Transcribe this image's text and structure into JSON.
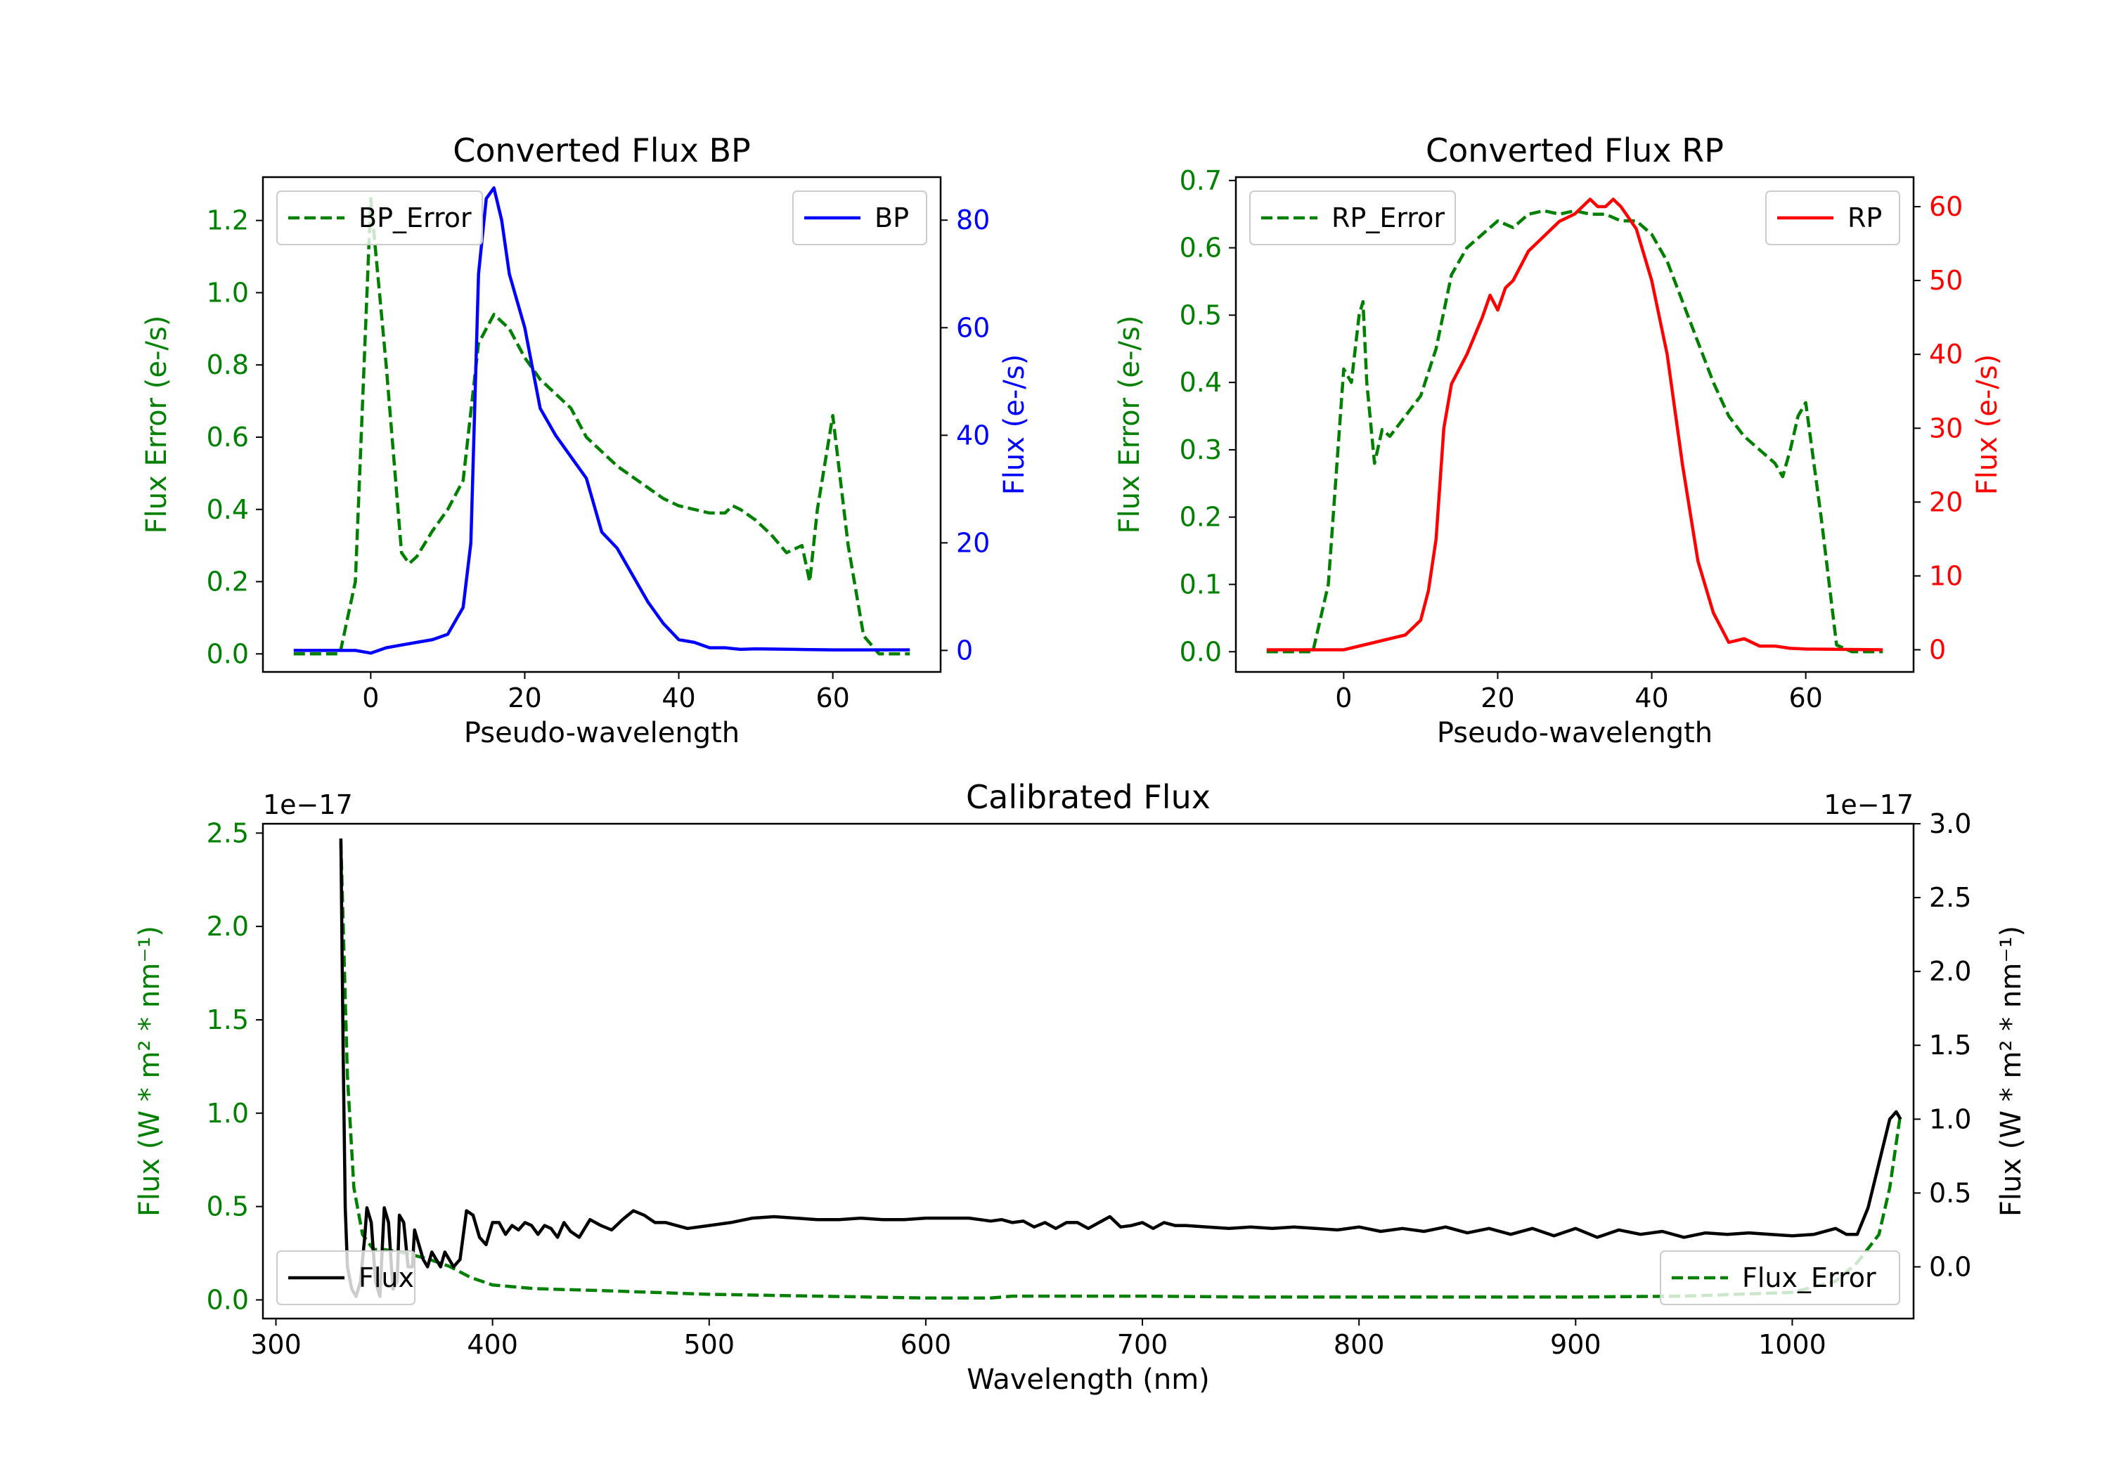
{
  "chart_data": [
    {
      "type": "line",
      "title": "Converted Flux BP",
      "xlabel": "Pseudo-wavelength",
      "xlim": [
        -14,
        74
      ],
      "xticks": [
        0,
        20,
        40,
        60
      ],
      "y_left": {
        "label": "Flux Error (e-/s)",
        "lim": [
          -0.05,
          1.32
        ],
        "ticks": [
          0.0,
          0.2,
          0.4,
          0.6,
          0.8,
          1.0,
          1.2
        ],
        "tick_labels": [
          "0.0",
          "0.2",
          "0.4",
          "0.6",
          "0.8",
          "1.0",
          "1.2"
        ],
        "color": "#008000"
      },
      "y_right": {
        "label": "Flux (e-/s)",
        "lim": [
          -4,
          88
        ],
        "ticks": [
          0,
          20,
          40,
          60,
          80
        ],
        "tick_labels": [
          "0",
          "20",
          "40",
          "60",
          "80"
        ],
        "color": "#0000ff"
      },
      "series": [
        {
          "name": "BP_Error",
          "axis": "left",
          "style": "dashed",
          "color": "#008000",
          "x": [
            -10,
            -4,
            -2,
            0,
            2,
            4,
            5,
            6,
            8,
            10,
            12,
            14,
            16,
            18,
            20,
            22,
            24,
            26,
            28,
            30,
            32,
            34,
            36,
            38,
            40,
            42,
            44,
            46,
            47,
            48,
            50,
            52,
            54,
            56,
            57,
            58,
            60,
            62,
            64,
            66,
            70
          ],
          "y": [
            0.0,
            0.0,
            0.2,
            1.26,
            0.8,
            0.28,
            0.25,
            0.27,
            0.34,
            0.4,
            0.48,
            0.86,
            0.94,
            0.9,
            0.82,
            0.76,
            0.72,
            0.68,
            0.6,
            0.56,
            0.52,
            0.49,
            0.46,
            0.43,
            0.41,
            0.4,
            0.39,
            0.39,
            0.41,
            0.4,
            0.37,
            0.33,
            0.28,
            0.3,
            0.2,
            0.4,
            0.66,
            0.3,
            0.05,
            0.0,
            0.0
          ]
        },
        {
          "name": "BP",
          "axis": "right",
          "style": "solid",
          "color": "#0000ff",
          "x": [
            -10,
            -2,
            0,
            2,
            4,
            6,
            8,
            10,
            12,
            13,
            14,
            15,
            16,
            17,
            18,
            20,
            22,
            24,
            26,
            28,
            30,
            32,
            34,
            36,
            38,
            40,
            42,
            44,
            46,
            48,
            50,
            55,
            60,
            70
          ],
          "y": [
            0,
            0,
            -0.5,
            0.5,
            1,
            1.5,
            2,
            3,
            8,
            20,
            70,
            84,
            86,
            80,
            70,
            60,
            45,
            40,
            36,
            32,
            22,
            19,
            14,
            9,
            5,
            2,
            1.5,
            0.5,
            0.5,
            0.2,
            0.3,
            0.2,
            0.1,
            0.1
          ]
        }
      ],
      "legend": [
        {
          "label": "BP_Error",
          "position": "upper-left"
        },
        {
          "label": "BP",
          "position": "upper-right"
        }
      ]
    },
    {
      "type": "line",
      "title": "Converted Flux RP",
      "xlabel": "Pseudo-wavelength",
      "xlim": [
        -14,
        74
      ],
      "xticks": [
        0,
        20,
        40,
        60
      ],
      "y_left": {
        "label": "Flux Error (e-/s)",
        "lim": [
          -0.03,
          0.705
        ],
        "ticks": [
          0.0,
          0.1,
          0.2,
          0.3,
          0.4,
          0.5,
          0.6,
          0.7
        ],
        "tick_labels": [
          "0.0",
          "0.1",
          "0.2",
          "0.3",
          "0.4",
          "0.5",
          "0.6",
          "0.7"
        ],
        "color": "#008000"
      },
      "y_right": {
        "label": "Flux (e-/s)",
        "lim": [
          -3,
          64
        ],
        "ticks": [
          0,
          10,
          20,
          30,
          40,
          50,
          60
        ],
        "tick_labels": [
          "0",
          "10",
          "20",
          "30",
          "40",
          "50",
          "60"
        ],
        "color": "#ff0000"
      },
      "series": [
        {
          "name": "RP_Error",
          "axis": "left",
          "style": "dashed",
          "color": "#008000",
          "x": [
            -10,
            -4,
            -2,
            0,
            1,
            2,
            2.5,
            3,
            4,
            5,
            6,
            8,
            10,
            12,
            14,
            16,
            18,
            20,
            22,
            24,
            26,
            28,
            30,
            32,
            34,
            36,
            38,
            40,
            42,
            44,
            46,
            48,
            50,
            52,
            54,
            56,
            57,
            58,
            59,
            60,
            62,
            64,
            66,
            70
          ],
          "y": [
            0.0,
            0.0,
            0.1,
            0.42,
            0.4,
            0.5,
            0.52,
            0.4,
            0.28,
            0.33,
            0.32,
            0.35,
            0.38,
            0.45,
            0.56,
            0.6,
            0.62,
            0.64,
            0.63,
            0.65,
            0.655,
            0.65,
            0.655,
            0.65,
            0.65,
            0.64,
            0.64,
            0.62,
            0.58,
            0.52,
            0.46,
            0.4,
            0.35,
            0.32,
            0.3,
            0.28,
            0.26,
            0.3,
            0.35,
            0.37,
            0.2,
            0.01,
            0.0,
            0.0
          ]
        },
        {
          "name": "RP",
          "axis": "right",
          "style": "solid",
          "color": "#ff0000",
          "x": [
            -10,
            -4,
            0,
            4,
            6,
            8,
            9,
            10,
            11,
            12,
            13,
            14,
            16,
            18,
            19,
            20,
            21,
            22,
            24,
            26,
            28,
            30,
            31,
            32,
            33,
            34,
            35,
            36,
            38,
            40,
            42,
            44,
            46,
            48,
            50,
            52,
            54,
            56,
            58,
            60,
            70
          ],
          "y": [
            0,
            0,
            0,
            1,
            1.5,
            2,
            3,
            4,
            8,
            15,
            30,
            36,
            40,
            45,
            48,
            46,
            49,
            50,
            54,
            56,
            58,
            59,
            60,
            61,
            60,
            60,
            61,
            60,
            57,
            50,
            40,
            25,
            12,
            5,
            1,
            1.5,
            0.5,
            0.5,
            0.2,
            0.1,
            0
          ]
        }
      ],
      "legend": [
        {
          "label": "RP_Error",
          "position": "upper-left"
        },
        {
          "label": "RP",
          "position": "upper-right"
        }
      ]
    },
    {
      "type": "line",
      "title": "Calibrated Flux",
      "xlabel": "Wavelength (nm)",
      "xlim": [
        294,
        1056
      ],
      "xticks": [
        300,
        400,
        500,
        600,
        700,
        800,
        900,
        1000
      ],
      "y_left": {
        "label": "Flux (W * m² * nm⁻¹)",
        "lim": [
          -0.1,
          2.55
        ],
        "ticks": [
          0.0,
          0.5,
          1.0,
          1.5,
          2.0,
          2.5
        ],
        "tick_labels": [
          "0.0",
          "0.5",
          "1.0",
          "1.5",
          "2.0",
          "2.5"
        ],
        "offset_label": "1e−17",
        "color": "#008000"
      },
      "y_right": {
        "label": "Flux (W * m² * nm⁻¹)",
        "lim": [
          -0.35,
          3.0
        ],
        "ticks": [
          0.0,
          0.5,
          1.0,
          1.5,
          2.0,
          2.5,
          3.0
        ],
        "tick_labels": [
          "0.0",
          "0.5",
          "1.0",
          "1.5",
          "2.0",
          "2.5",
          "3.0"
        ],
        "offset_label": "1e−17",
        "color": "#000000"
      },
      "series": [
        {
          "name": "Flux_Error",
          "axis": "left",
          "style": "dashed",
          "color": "#008000",
          "x": [
            330,
            333,
            336,
            340,
            345,
            350,
            360,
            370,
            380,
            390,
            400,
            420,
            450,
            500,
            550,
            600,
            630,
            640,
            650,
            700,
            750,
            800,
            850,
            900,
            950,
            1000,
            1020,
            1030,
            1040,
            1045,
            1050
          ],
          "y": [
            2.45,
            1.2,
            0.6,
            0.35,
            0.27,
            0.27,
            0.25,
            0.22,
            0.18,
            0.12,
            0.08,
            0.06,
            0.05,
            0.03,
            0.02,
            0.01,
            0.01,
            0.02,
            0.02,
            0.02,
            0.015,
            0.015,
            0.015,
            0.015,
            0.02,
            0.04,
            0.1,
            0.2,
            0.35,
            0.6,
            1.0
          ]
        },
        {
          "name": "Flux",
          "axis": "right",
          "style": "solid",
          "color": "#000000",
          "x": [
            330,
            331,
            332,
            333,
            335,
            337,
            339,
            341,
            342,
            344,
            346,
            348,
            349,
            350,
            352,
            354,
            356,
            357,
            359,
            361,
            363,
            364,
            366,
            368,
            370,
            372,
            374,
            376,
            378,
            380,
            382,
            385,
            388,
            391,
            394,
            397,
            400,
            403,
            406,
            409,
            412,
            415,
            418,
            421,
            424,
            427,
            430,
            433,
            436,
            440,
            445,
            450,
            455,
            460,
            465,
            470,
            475,
            480,
            490,
            500,
            510,
            520,
            530,
            540,
            550,
            560,
            570,
            580,
            590,
            600,
            610,
            620,
            630,
            635,
            640,
            645,
            650,
            655,
            660,
            665,
            670,
            675,
            680,
            685,
            690,
            695,
            700,
            705,
            710,
            715,
            720,
            730,
            740,
            750,
            760,
            770,
            780,
            790,
            800,
            810,
            820,
            830,
            840,
            850,
            860,
            870,
            880,
            890,
            900,
            910,
            920,
            930,
            940,
            950,
            960,
            970,
            980,
            990,
            1000,
            1010,
            1020,
            1025,
            1030,
            1035,
            1040,
            1045,
            1048,
            1050
          ],
          "y": [
            2.9,
            1.5,
            0.4,
            0.0,
            -0.15,
            -0.2,
            -0.1,
            0.2,
            0.4,
            0.3,
            -0.1,
            -0.2,
            0.1,
            0.4,
            0.3,
            -0.15,
            -0.1,
            0.35,
            0.3,
            0.0,
            0.0,
            0.25,
            0.15,
            0.05,
            0.0,
            0.1,
            0.05,
            0.0,
            0.1,
            0.05,
            0.0,
            0.05,
            0.38,
            0.35,
            0.2,
            0.15,
            0.3,
            0.3,
            0.22,
            0.28,
            0.25,
            0.3,
            0.28,
            0.22,
            0.28,
            0.26,
            0.2,
            0.3,
            0.24,
            0.2,
            0.32,
            0.28,
            0.25,
            0.32,
            0.38,
            0.35,
            0.3,
            0.3,
            0.26,
            0.28,
            0.3,
            0.33,
            0.34,
            0.33,
            0.32,
            0.32,
            0.33,
            0.32,
            0.32,
            0.33,
            0.33,
            0.33,
            0.31,
            0.32,
            0.3,
            0.31,
            0.27,
            0.3,
            0.26,
            0.3,
            0.3,
            0.26,
            0.3,
            0.34,
            0.27,
            0.28,
            0.3,
            0.26,
            0.3,
            0.28,
            0.28,
            0.27,
            0.26,
            0.27,
            0.26,
            0.27,
            0.26,
            0.25,
            0.27,
            0.24,
            0.26,
            0.24,
            0.27,
            0.23,
            0.26,
            0.22,
            0.26,
            0.21,
            0.26,
            0.2,
            0.25,
            0.22,
            0.24,
            0.2,
            0.23,
            0.22,
            0.23,
            0.22,
            0.21,
            0.22,
            0.26,
            0.22,
            0.22,
            0.4,
            0.7,
            1.0,
            1.05,
            1.0
          ]
        }
      ],
      "legend": [
        {
          "label": "Flux",
          "position": "lower-left"
        },
        {
          "label": "Flux_Error",
          "position": "lower-right"
        }
      ]
    }
  ]
}
